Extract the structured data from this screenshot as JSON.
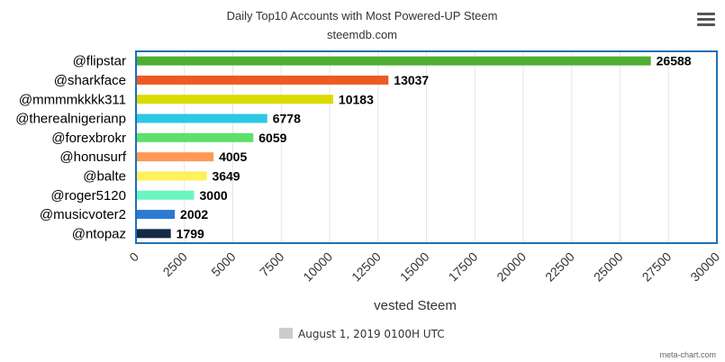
{
  "colors": {
    "bars": [
      "#4ead33",
      "#ee5a24",
      "#dadb00",
      "#2ec7e5",
      "#5ce06c",
      "#ff9955",
      "#fff159",
      "#6af6c3",
      "#2e79d4",
      "#152a45"
    ],
    "frame": "#1f6fb8",
    "grid": "#e6e6e6",
    "legend_swatch": "#cccccc"
  },
  "icons": {
    "menu": "hamburger-menu-icon"
  },
  "chart_data": {
    "type": "bar",
    "orientation": "horizontal",
    "title": "Daily Top10 Accounts with Most Powered-UP Steem",
    "subtitle": "steemdb.com",
    "categories": [
      "@flipstar",
      "@sharkface",
      "@mmmmkkkk311",
      "@therealnigerianp",
      "@forexbrokr",
      "@honusurf",
      "@balte",
      "@roger5120",
      "@musicvoter2",
      "@ntopaz"
    ],
    "values": [
      26588,
      13037,
      10183,
      6778,
      6059,
      4005,
      3649,
      3000,
      2002,
      1799
    ],
    "data_labels": [
      "26588",
      "13037",
      "10183",
      "6778",
      "6059",
      "4005",
      "3649",
      "3000",
      "2002",
      "1799"
    ],
    "xlabel": "vested Steem",
    "xlim": [
      0,
      30000
    ],
    "x_ticks": [
      0,
      2500,
      5000,
      7500,
      10000,
      12500,
      15000,
      17500,
      20000,
      22500,
      25000,
      27500,
      30000
    ],
    "x_tick_labels": [
      "0",
      "2500",
      "5000",
      "7500",
      "10000",
      "12500",
      "15000",
      "17500",
      "20000",
      "22500",
      "25000",
      "27500",
      "30000"
    ],
    "grid": true,
    "legend": {
      "entries": [
        "August 1, 2019 0100H UTC"
      ],
      "position": "bottom-center"
    },
    "credit": "meta-chart.com"
  }
}
